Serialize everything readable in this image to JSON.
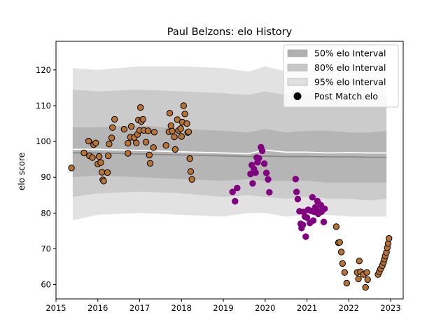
{
  "chart_data": {
    "type": "scatter",
    "title": "Paul Belzons: elo History",
    "ylabel": "elo score",
    "xlabel": "",
    "xlim": [
      2015.0,
      2023.3
    ],
    "ylim": [
      56,
      128
    ],
    "x_ticks": [
      2015,
      2016,
      2017,
      2018,
      2019,
      2020,
      2021,
      2022,
      2023
    ],
    "y_ticks": [
      60,
      70,
      80,
      90,
      100,
      110,
      120
    ],
    "grid": false,
    "legend_position": "top-right",
    "legend": [
      {
        "label": "50% elo Interval",
        "kind": "band",
        "color": "#b0b0b0"
      },
      {
        "label": "80% elo Interval",
        "kind": "band",
        "color": "#c8c8c8"
      },
      {
        "label": "95% elo Interval",
        "kind": "band",
        "color": "#e0e0e0"
      },
      {
        "label": "Post Match elo",
        "kind": "marker",
        "color": "#000000"
      }
    ],
    "colors": {
      "band95": "#e2e2e2",
      "band80": "#cbcbcb",
      "band50": "#b5b5b5",
      "mean_line": "#888888",
      "white_line": "#ffffff",
      "point_orange": "#b87333",
      "point_purple": "#800080",
      "point_edge": "#000000"
    },
    "bands": {
      "x": [
        2015.4,
        2016.0,
        2017.0,
        2018.0,
        2019.0,
        2019.6,
        2020.0,
        2020.5,
        2021.0,
        2021.5,
        2022.0,
        2022.5,
        2022.9
      ],
      "upper95": [
        120.5,
        120,
        121,
        121,
        120.5,
        119.5,
        121,
        119.5,
        120,
        119.5,
        120,
        119.5,
        119.5
      ],
      "lower95": [
        78,
        79.5,
        80,
        79.5,
        79,
        80,
        80,
        79,
        79.5,
        79.5,
        79,
        79,
        79
      ],
      "upper80": [
        114.5,
        114,
        114.5,
        114,
        113.5,
        113,
        114,
        113,
        113,
        112.5,
        113,
        112.5,
        113
      ],
      "lower80": [
        84.5,
        85.5,
        86,
        85.5,
        84.5,
        85,
        84.5,
        84,
        84.5,
        84,
        84,
        83.5,
        84
      ],
      "upper50": [
        104,
        104,
        104.5,
        103.5,
        103,
        102.5,
        103.5,
        102.5,
        103,
        103,
        102.5,
        102.5,
        103
      ],
      "lower50": [
        90,
        90.5,
        90,
        89.5,
        89,
        89.5,
        89,
        89,
        89,
        88.5,
        88.5,
        88.5,
        88.5
      ],
      "mean": [
        96.8,
        96.8,
        96.5,
        96.2,
        96.0,
        95.8,
        95.9,
        95.8,
        95.8,
        95.7,
        95.7,
        95.6,
        95.6
      ],
      "white": [
        97.8,
        97.8,
        97.5,
        97.1,
        96.8,
        96.6,
        97.6,
        97.0,
        97.0,
        96.8,
        96.9,
        96.8,
        96.8
      ]
    },
    "series": [
      {
        "color_key": "point_orange",
        "points": [
          [
            2015.37,
            92.6
          ],
          [
            2015.67,
            96.8
          ],
          [
            2015.78,
            100.1
          ],
          [
            2015.8,
            96.0
          ],
          [
            2015.87,
            95.5
          ],
          [
            2015.9,
            99.1
          ],
          [
            2015.95,
            99.6
          ],
          [
            2016.0,
            93.7
          ],
          [
            2016.03,
            95.8
          ],
          [
            2016.07,
            94.1
          ],
          [
            2016.1,
            91.4
          ],
          [
            2016.12,
            89.3
          ],
          [
            2016.14,
            88.9
          ],
          [
            2016.23,
            91.3
          ],
          [
            2016.25,
            96.0
          ],
          [
            2016.27,
            99.3
          ],
          [
            2016.33,
            101.0
          ],
          [
            2016.35,
            103.9
          ],
          [
            2016.4,
            106.2
          ],
          [
            2016.63,
            103.4
          ],
          [
            2016.72,
            96.7
          ],
          [
            2016.72,
            99.5
          ],
          [
            2016.78,
            101.2
          ],
          [
            2016.8,
            104.2
          ],
          [
            2016.87,
            101.1
          ],
          [
            2016.92,
            99.6
          ],
          [
            2016.95,
            102.0
          ],
          [
            2016.97,
            106.0
          ],
          [
            2017.0,
            103.1
          ],
          [
            2017.02,
            109.5
          ],
          [
            2017.04,
            105.6
          ],
          [
            2017.08,
            106.2
          ],
          [
            2017.1,
            103.1
          ],
          [
            2017.15,
            99.8
          ],
          [
            2017.2,
            103.0
          ],
          [
            2017.23,
            96.2
          ],
          [
            2017.25,
            93.9
          ],
          [
            2017.33,
            98.3
          ],
          [
            2017.35,
            102.6
          ],
          [
            2017.63,
            98.9
          ],
          [
            2017.7,
            102.7
          ],
          [
            2017.72,
            107.9
          ],
          [
            2017.75,
            104.4
          ],
          [
            2017.78,
            102.9
          ],
          [
            2017.83,
            101.3
          ],
          [
            2017.85,
            97.8
          ],
          [
            2017.9,
            106.1
          ],
          [
            2017.93,
            103.1
          ],
          [
            2017.98,
            103.6
          ],
          [
            2018.0,
            101.4
          ],
          [
            2018.02,
            105.4
          ],
          [
            2018.05,
            110.0
          ],
          [
            2018.08,
            107.7
          ],
          [
            2018.13,
            105.0
          ],
          [
            2018.15,
            102.5
          ],
          [
            2018.17,
            102.7
          ],
          [
            2018.2,
            95.2
          ],
          [
            2018.22,
            91.6
          ],
          [
            2018.25,
            89.4
          ],
          [
            2021.7,
            76.2
          ],
          [
            2021.75,
            71.7
          ],
          [
            2021.78,
            71.8
          ],
          [
            2021.82,
            69.1
          ],
          [
            2021.85,
            65.9
          ],
          [
            2021.9,
            63.4
          ],
          [
            2021.95,
            60.4
          ],
          [
            2022.2,
            63.4
          ],
          [
            2022.23,
            61.6
          ],
          [
            2022.25,
            66.6
          ],
          [
            2022.28,
            63.6
          ],
          [
            2022.35,
            62.8
          ],
          [
            2022.4,
            59.2
          ],
          [
            2022.43,
            63.4
          ],
          [
            2022.45,
            61.4
          ],
          [
            2022.7,
            62.8
          ],
          [
            2022.73,
            63.6
          ],
          [
            2022.76,
            64.4
          ],
          [
            2022.8,
            65.3
          ],
          [
            2022.83,
            66.2
          ],
          [
            2022.85,
            67.1
          ],
          [
            2022.87,
            68.0
          ],
          [
            2022.9,
            69.0
          ],
          [
            2022.92,
            70.3
          ],
          [
            2022.94,
            71.5
          ],
          [
            2022.96,
            72.9
          ]
        ]
      },
      {
        "color_key": "point_purple",
        "points": [
          [
            2019.22,
            85.9
          ],
          [
            2019.28,
            83.3
          ],
          [
            2019.33,
            87.0
          ],
          [
            2019.65,
            90.9
          ],
          [
            2019.68,
            93.4
          ],
          [
            2019.7,
            88.3
          ],
          [
            2019.73,
            92.3
          ],
          [
            2019.77,
            91.3
          ],
          [
            2019.8,
            95.5
          ],
          [
            2019.82,
            94.2
          ],
          [
            2019.85,
            95.3
          ],
          [
            2019.9,
            98.4
          ],
          [
            2019.93,
            97.4
          ],
          [
            2019.98,
            93.8
          ],
          [
            2020.03,
            91.2
          ],
          [
            2020.07,
            89.4
          ],
          [
            2020.1,
            85.8
          ],
          [
            2020.73,
            89.5
          ],
          [
            2020.75,
            85.9
          ],
          [
            2020.78,
            83.9
          ],
          [
            2020.82,
            80.5
          ],
          [
            2020.85,
            77.0
          ],
          [
            2020.87,
            75.8
          ],
          [
            2020.9,
            76.7
          ],
          [
            2020.92,
            80.3
          ],
          [
            2020.95,
            79.0
          ],
          [
            2020.97,
            73.4
          ],
          [
            2021.0,
            78.7
          ],
          [
            2021.03,
            80.9
          ],
          [
            2021.07,
            77.2
          ],
          [
            2021.1,
            80.6
          ],
          [
            2021.13,
            84.4
          ],
          [
            2021.15,
            77.9
          ],
          [
            2021.18,
            80.3
          ],
          [
            2021.2,
            81.6
          ],
          [
            2021.22,
            80.9
          ],
          [
            2021.25,
            83.3
          ],
          [
            2021.27,
            79.8
          ],
          [
            2021.3,
            80.3
          ],
          [
            2021.33,
            82.2
          ],
          [
            2021.35,
            80.4
          ],
          [
            2021.37,
            80.9
          ],
          [
            2021.4,
            77.5
          ],
          [
            2021.42,
            81.2
          ]
        ]
      }
    ]
  }
}
